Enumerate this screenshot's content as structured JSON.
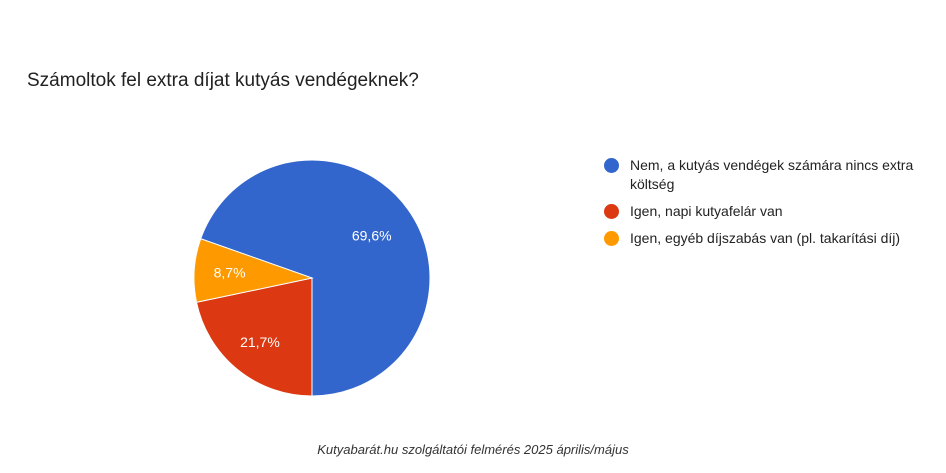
{
  "chart_data": {
    "type": "pie",
    "title": "Számoltok fel extra díjat kutyás vendégeknek?",
    "legend_position": "right",
    "slices": [
      {
        "label": "Nem, a kutyás vendégek számára nincs extra költség",
        "value": 69.6,
        "value_label": "69,6%",
        "color": "#3366cc"
      },
      {
        "label": "Igen, napi kutyafelár van",
        "value": 21.7,
        "value_label": "21,7%",
        "color": "#dc3912"
      },
      {
        "label": "Igen, egyéb díjszabás van (pl. takarítási díj)",
        "value": 8.7,
        "value_label": "8,7%",
        "color": "#ff9900"
      }
    ]
  },
  "caption": "Kutyabarát.hu szolgáltatói felmérés 2025 április/május"
}
